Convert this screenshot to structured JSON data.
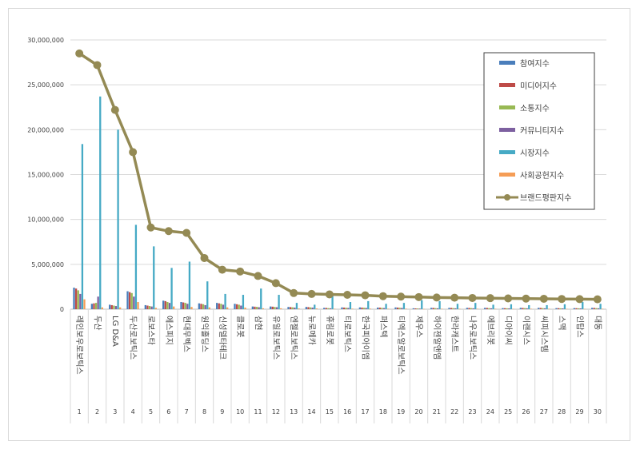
{
  "chart_data": {
    "type": "bar",
    "title": "",
    "xlabel": "",
    "ylabel": "",
    "ylim": [
      0,
      30000000
    ],
    "yticks": [
      "0",
      "5,000,000",
      "10,000,000",
      "15,000,000",
      "20,000,000",
      "25,000,000",
      "30,000,000"
    ],
    "ytick_values": [
      0,
      5000000,
      10000000,
      15000000,
      20000000,
      25000000,
      30000000
    ],
    "grid": true,
    "legend": "top-right",
    "categories": [
      "레인보우로보틱스",
      "두산",
      "LG D&A",
      "두산로보틱스",
      "로보스타",
      "에스피지",
      "현대무벡스",
      "원익홀딩스",
      "신성델타테크",
      "클로봇",
      "삼현",
      "유일로보틱스",
      "엔젤로보틱스",
      "뉴로메카",
      "휴림로봇",
      "티로보틱스",
      "한국피아이엠",
      "퍼스텍",
      "티엑스알로보틱스",
      "제우스",
      "하이젠알앤엠",
      "한라캐스트",
      "나우로보틱스",
      "에브리봇",
      "디아이씨",
      "이랜시스",
      "씨피시스템",
      "스맥",
      "인탑스",
      "대동"
    ],
    "ranks": [
      "1",
      "2",
      "3",
      "4",
      "5",
      "6",
      "7",
      "8",
      "9",
      "10",
      "11",
      "12",
      "13",
      "14",
      "15",
      "16",
      "17",
      "18",
      "19",
      "20",
      "21",
      "22",
      "23",
      "24",
      "25",
      "26",
      "27",
      "28",
      "29",
      "30"
    ],
    "series": [
      {
        "name": "참여지수",
        "color": "#4a7ebb",
        "values": [
          2400000,
          600000,
          500000,
          2000000,
          450000,
          950000,
          800000,
          650000,
          700000,
          600000,
          300000,
          300000,
          250000,
          250000,
          150000,
          200000,
          200000,
          180000,
          200000,
          100000,
          150000,
          150000,
          150000,
          150000,
          120000,
          150000,
          150000,
          120000,
          120000,
          150000
        ]
      },
      {
        "name": "미디어지수",
        "color": "#be4b48",
        "values": [
          2300000,
          650000,
          450000,
          1900000,
          400000,
          900000,
          750000,
          600000,
          650000,
          550000,
          280000,
          280000,
          230000,
          230000,
          140000,
          180000,
          180000,
          170000,
          180000,
          90000,
          140000,
          140000,
          140000,
          140000,
          110000,
          140000,
          140000,
          110000,
          110000,
          140000
        ]
      },
      {
        "name": "소통지수",
        "color": "#98b954",
        "values": [
          2100000,
          700000,
          400000,
          1800000,
          350000,
          800000,
          700000,
          550000,
          600000,
          500000,
          260000,
          250000,
          210000,
          200000,
          120000,
          160000,
          160000,
          150000,
          160000,
          80000,
          120000,
          120000,
          120000,
          120000,
          100000,
          120000,
          120000,
          100000,
          100000,
          120000
        ]
      },
      {
        "name": "커뮤니티지수",
        "color": "#7d60a0",
        "values": [
          1700000,
          1400000,
          350000,
          1400000,
          300000,
          700000,
          600000,
          450000,
          500000,
          400000,
          220000,
          220000,
          180000,
          180000,
          100000,
          140000,
          140000,
          130000,
          140000,
          70000,
          100000,
          100000,
          100000,
          100000,
          90000,
          100000,
          100000,
          90000,
          90000,
          100000
        ]
      },
      {
        "name": "시장지수",
        "color": "#46aac5",
        "values": [
          18400000,
          23700000,
          20000000,
          9400000,
          7000000,
          4600000,
          5300000,
          3100000,
          1700000,
          1600000,
          2300000,
          1600000,
          700000,
          500000,
          1700000,
          800000,
          900000,
          600000,
          700000,
          1000000,
          900000,
          600000,
          700000,
          500000,
          550000,
          450000,
          450000,
          550000,
          800000,
          600000
        ]
      },
      {
        "name": "사회공헌지수",
        "color": "#f59d56",
        "values": [
          1100000,
          200000,
          200000,
          800000,
          150000,
          300000,
          250000,
          200000,
          200000,
          180000,
          100000,
          100000,
          80000,
          80000,
          50000,
          60000,
          60000,
          50000,
          60000,
          30000,
          50000,
          50000,
          50000,
          50000,
          40000,
          50000,
          50000,
          40000,
          40000,
          50000
        ]
      }
    ],
    "line": {
      "name": "브랜드평판지수",
      "color": "#948a54",
      "values": [
        28500000,
        27200000,
        22200000,
        17500000,
        9100000,
        8700000,
        8500000,
        5700000,
        4400000,
        4200000,
        3700000,
        2900000,
        1800000,
        1700000,
        1650000,
        1600000,
        1550000,
        1450000,
        1400000,
        1350000,
        1300000,
        1280000,
        1250000,
        1230000,
        1200000,
        1180000,
        1160000,
        1140000,
        1120000,
        1100000
      ]
    }
  }
}
